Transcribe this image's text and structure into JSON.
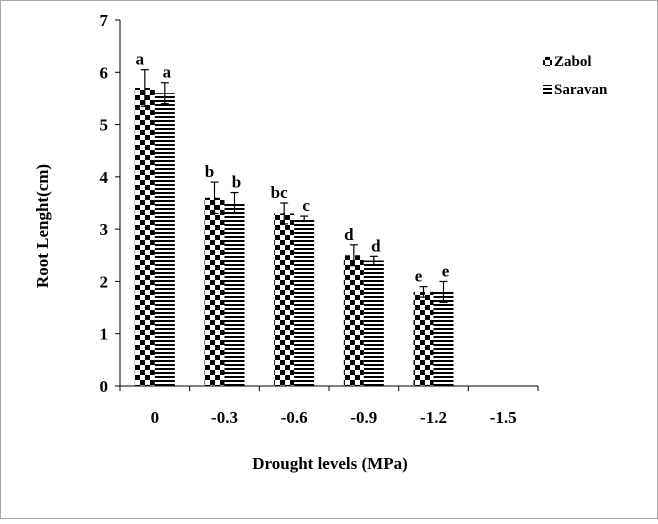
{
  "chart_data": {
    "type": "bar",
    "title": "",
    "xlabel": "Drought levels (MPa)",
    "ylabel": "Root Lenght(cm)",
    "categories": [
      "0",
      "-0.3",
      "-0.6",
      "-0.9",
      "-1.2",
      "-1.5"
    ],
    "ylim": [
      0,
      7
    ],
    "yticks": [
      "0",
      "1",
      "2",
      "3",
      "4",
      "5",
      "6",
      "7"
    ],
    "grid": false,
    "legend_position": "top-right",
    "series": [
      {
        "name": "Zabol",
        "pattern": "checkerboard",
        "values": [
          5.7,
          3.6,
          3.3,
          2.5,
          1.8,
          null
        ],
        "errors": [
          0.35,
          0.3,
          0.2,
          0.2,
          0.1,
          null
        ],
        "letters": [
          "a",
          "b",
          "bc",
          "d",
          "e",
          ""
        ]
      },
      {
        "name": "Saravan",
        "pattern": "horizontal-lines",
        "values": [
          5.6,
          3.5,
          3.2,
          2.4,
          1.8,
          null
        ],
        "errors": [
          0.2,
          0.2,
          0.05,
          0.08,
          0.2,
          null
        ],
        "letters": [
          "a",
          "b",
          "c",
          "d",
          "e",
          ""
        ]
      }
    ],
    "colors": {
      "ink": "#000000",
      "background": "#ffffff",
      "frame": "#a6a6a6"
    }
  }
}
